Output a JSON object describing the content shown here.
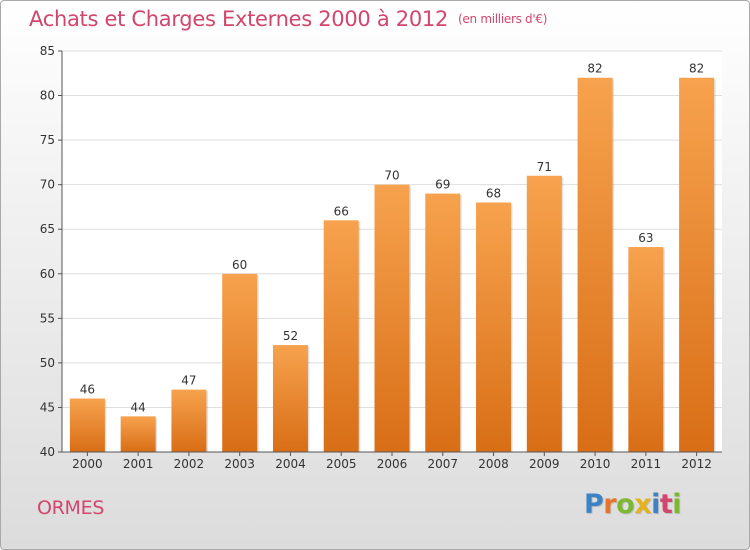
{
  "page": {
    "title": "Achats et Charges Externes 2000 à 2012",
    "subtitle": "(en milliers d'€)",
    "commune": "ORMES",
    "brand": {
      "letters": [
        "P",
        "r",
        "o",
        "x",
        "i",
        "t",
        "i"
      ],
      "colors": [
        "#3b83c4",
        "#e8742b",
        "#7cb832",
        "#e3b21d",
        "#3b83c4",
        "#d2456c",
        "#7cb832"
      ]
    }
  },
  "colors": {
    "accent": "#d2456c",
    "bar_top": "#f7a24e",
    "bar_bottom": "#d86e16",
    "grid": "#dedede",
    "axis_text": "#333333"
  },
  "chart_data": {
    "type": "bar",
    "title": "Achats et Charges Externes 2000 à 2012",
    "subtitle": "(en milliers d'€)",
    "categories": [
      "2000",
      "2001",
      "2002",
      "2003",
      "2004",
      "2005",
      "2006",
      "2007",
      "2008",
      "2009",
      "2010",
      "2011",
      "2012"
    ],
    "values": [
      46,
      44,
      47,
      60,
      52,
      66,
      70,
      69,
      68,
      71,
      82,
      63,
      82
    ],
    "ylim": [
      40,
      85
    ],
    "yticks": [
      40,
      45,
      50,
      55,
      60,
      65,
      70,
      75,
      80,
      85
    ],
    "grid": true,
    "data_labels": true
  }
}
